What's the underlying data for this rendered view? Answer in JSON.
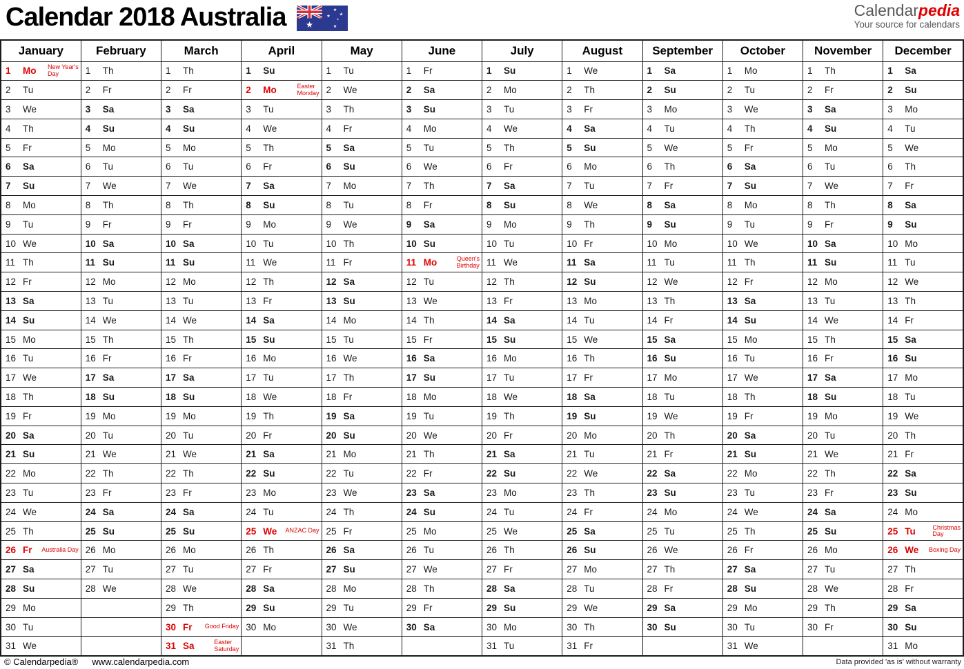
{
  "header": {
    "title": "Calendar 2018 Australia",
    "flag_icon": "australian-flag",
    "logo": {
      "part1": "Calendar",
      "part2": "pedia",
      "tagline": "Your source for calendars"
    }
  },
  "colors": {
    "saturday_bg": "#ffffcc",
    "sunday_bg": "#f8c08a",
    "holiday_bg": "#ffd2d2",
    "holiday_text": "#dd0000",
    "empty_bg": "#dbdbdb",
    "grid_border": "#1a1a1a",
    "logo_red": "#e10000",
    "flag_blue": "#2b3990"
  },
  "months": [
    {
      "name": "January",
      "days": [
        "Mo",
        "Tu",
        "We",
        "Th",
        "Fr",
        "Sa",
        "Su",
        "Mo",
        "Tu",
        "We",
        "Th",
        "Fr",
        "Sa",
        "Su",
        "Mo",
        "Tu",
        "We",
        "Th",
        "Fr",
        "Sa",
        "Su",
        "Mo",
        "Tu",
        "We",
        "Th",
        "Fr",
        "Sa",
        "Su",
        "Mo",
        "Tu",
        "We"
      ],
      "holidays": [
        {
          "day": 1,
          "name": "New Year's Day",
          "lines": [
            "New Year's",
            "Day"
          ]
        },
        {
          "day": 26,
          "name": "Australia Day",
          "lines": [
            "Australia Day"
          ]
        }
      ]
    },
    {
      "name": "February",
      "days": [
        "Th",
        "Fr",
        "Sa",
        "Su",
        "Mo",
        "Tu",
        "We",
        "Th",
        "Fr",
        "Sa",
        "Su",
        "Mo",
        "Tu",
        "We",
        "Th",
        "Fr",
        "Sa",
        "Su",
        "Mo",
        "Tu",
        "We",
        "Th",
        "Fr",
        "Sa",
        "Su",
        "Mo",
        "Tu",
        "We"
      ],
      "holidays": []
    },
    {
      "name": "March",
      "days": [
        "Th",
        "Fr",
        "Sa",
        "Su",
        "Mo",
        "Tu",
        "We",
        "Th",
        "Fr",
        "Sa",
        "Su",
        "Mo",
        "Tu",
        "We",
        "Th",
        "Fr",
        "Sa",
        "Su",
        "Mo",
        "Tu",
        "We",
        "Th",
        "Fr",
        "Sa",
        "Su",
        "Mo",
        "Tu",
        "We",
        "Th",
        "Fr",
        "Sa"
      ],
      "holidays": [
        {
          "day": 30,
          "name": "Good Friday",
          "lines": [
            "Good Friday"
          ]
        },
        {
          "day": 31,
          "name": "Easter Saturday",
          "lines": [
            "Easter",
            "Saturday"
          ]
        }
      ]
    },
    {
      "name": "April",
      "days": [
        "Su",
        "Mo",
        "Tu",
        "We",
        "Th",
        "Fr",
        "Sa",
        "Su",
        "Mo",
        "Tu",
        "We",
        "Th",
        "Fr",
        "Sa",
        "Su",
        "Mo",
        "Tu",
        "We",
        "Th",
        "Fr",
        "Sa",
        "Su",
        "Mo",
        "Tu",
        "We",
        "Th",
        "Fr",
        "Sa",
        "Su",
        "Mo"
      ],
      "holidays": [
        {
          "day": 2,
          "name": "Easter Monday",
          "lines": [
            "Easter",
            "Monday"
          ]
        },
        {
          "day": 25,
          "name": "ANZAC Day",
          "lines": [
            "ANZAC Day"
          ]
        }
      ]
    },
    {
      "name": "May",
      "days": [
        "Tu",
        "We",
        "Th",
        "Fr",
        "Sa",
        "Su",
        "Mo",
        "Tu",
        "We",
        "Th",
        "Fr",
        "Sa",
        "Su",
        "Mo",
        "Tu",
        "We",
        "Th",
        "Fr",
        "Sa",
        "Su",
        "Mo",
        "Tu",
        "We",
        "Th",
        "Fr",
        "Sa",
        "Su",
        "Mo",
        "Tu",
        "We",
        "Th"
      ],
      "holidays": []
    },
    {
      "name": "June",
      "days": [
        "Fr",
        "Sa",
        "Su",
        "Mo",
        "Tu",
        "We",
        "Th",
        "Fr",
        "Sa",
        "Su",
        "Mo",
        "Tu",
        "We",
        "Th",
        "Fr",
        "Sa",
        "Su",
        "Mo",
        "Tu",
        "We",
        "Th",
        "Fr",
        "Sa",
        "Su",
        "Mo",
        "Tu",
        "We",
        "Th",
        "Fr",
        "Sa"
      ],
      "holidays": [
        {
          "day": 11,
          "name": "Queen's Birthday",
          "lines": [
            "Queen's",
            "Birthday"
          ]
        }
      ]
    },
    {
      "name": "July",
      "days": [
        "Su",
        "Mo",
        "Tu",
        "We",
        "Th",
        "Fr",
        "Sa",
        "Su",
        "Mo",
        "Tu",
        "We",
        "Th",
        "Fr",
        "Sa",
        "Su",
        "Mo",
        "Tu",
        "We",
        "Th",
        "Fr",
        "Sa",
        "Su",
        "Mo",
        "Tu",
        "We",
        "Th",
        "Fr",
        "Sa",
        "Su",
        "Mo",
        "Tu"
      ],
      "holidays": []
    },
    {
      "name": "August",
      "days": [
        "We",
        "Th",
        "Fr",
        "Sa",
        "Su",
        "Mo",
        "Tu",
        "We",
        "Th",
        "Fr",
        "Sa",
        "Su",
        "Mo",
        "Tu",
        "We",
        "Th",
        "Fr",
        "Sa",
        "Su",
        "Mo",
        "Tu",
        "We",
        "Th",
        "Fr",
        "Sa",
        "Su",
        "Mo",
        "Tu",
        "We",
        "Th",
        "Fr"
      ],
      "holidays": []
    },
    {
      "name": "September",
      "days": [
        "Sa",
        "Su",
        "Mo",
        "Tu",
        "We",
        "Th",
        "Fr",
        "Sa",
        "Su",
        "Mo",
        "Tu",
        "We",
        "Th",
        "Fr",
        "Sa",
        "Su",
        "Mo",
        "Tu",
        "We",
        "Th",
        "Fr",
        "Sa",
        "Su",
        "Mo",
        "Tu",
        "We",
        "Th",
        "Fr",
        "Sa",
        "Su"
      ],
      "holidays": []
    },
    {
      "name": "October",
      "days": [
        "Mo",
        "Tu",
        "We",
        "Th",
        "Fr",
        "Sa",
        "Su",
        "Mo",
        "Tu",
        "We",
        "Th",
        "Fr",
        "Sa",
        "Su",
        "Mo",
        "Tu",
        "We",
        "Th",
        "Fr",
        "Sa",
        "Su",
        "Mo",
        "Tu",
        "We",
        "Th",
        "Fr",
        "Sa",
        "Su",
        "Mo",
        "Tu",
        "We"
      ],
      "holidays": []
    },
    {
      "name": "November",
      "days": [
        "Th",
        "Fr",
        "Sa",
        "Su",
        "Mo",
        "Tu",
        "We",
        "Th",
        "Fr",
        "Sa",
        "Su",
        "Mo",
        "Tu",
        "We",
        "Th",
        "Fr",
        "Sa",
        "Su",
        "Mo",
        "Tu",
        "We",
        "Th",
        "Fr",
        "Sa",
        "Su",
        "Mo",
        "Tu",
        "We",
        "Th",
        "Fr"
      ],
      "holidays": []
    },
    {
      "name": "December",
      "days": [
        "Sa",
        "Su",
        "Mo",
        "Tu",
        "We",
        "Th",
        "Fr",
        "Sa",
        "Su",
        "Mo",
        "Tu",
        "We",
        "Th",
        "Fr",
        "Sa",
        "Su",
        "Mo",
        "Tu",
        "We",
        "Th",
        "Fr",
        "Sa",
        "Su",
        "Mo",
        "Tu",
        "We",
        "Th",
        "Fr",
        "Sa",
        "Su",
        "Mo"
      ],
      "holidays": [
        {
          "day": 25,
          "name": "Christmas Day",
          "lines": [
            "Christmas",
            "Day"
          ]
        },
        {
          "day": 26,
          "name": "Boxing Day",
          "lines": [
            "Boxing Day"
          ]
        }
      ]
    }
  ],
  "footer": {
    "copyright": "© Calendarpedia®",
    "url": "www.calendarpedia.com",
    "disclaimer": "Data provided 'as is' without warranty"
  }
}
